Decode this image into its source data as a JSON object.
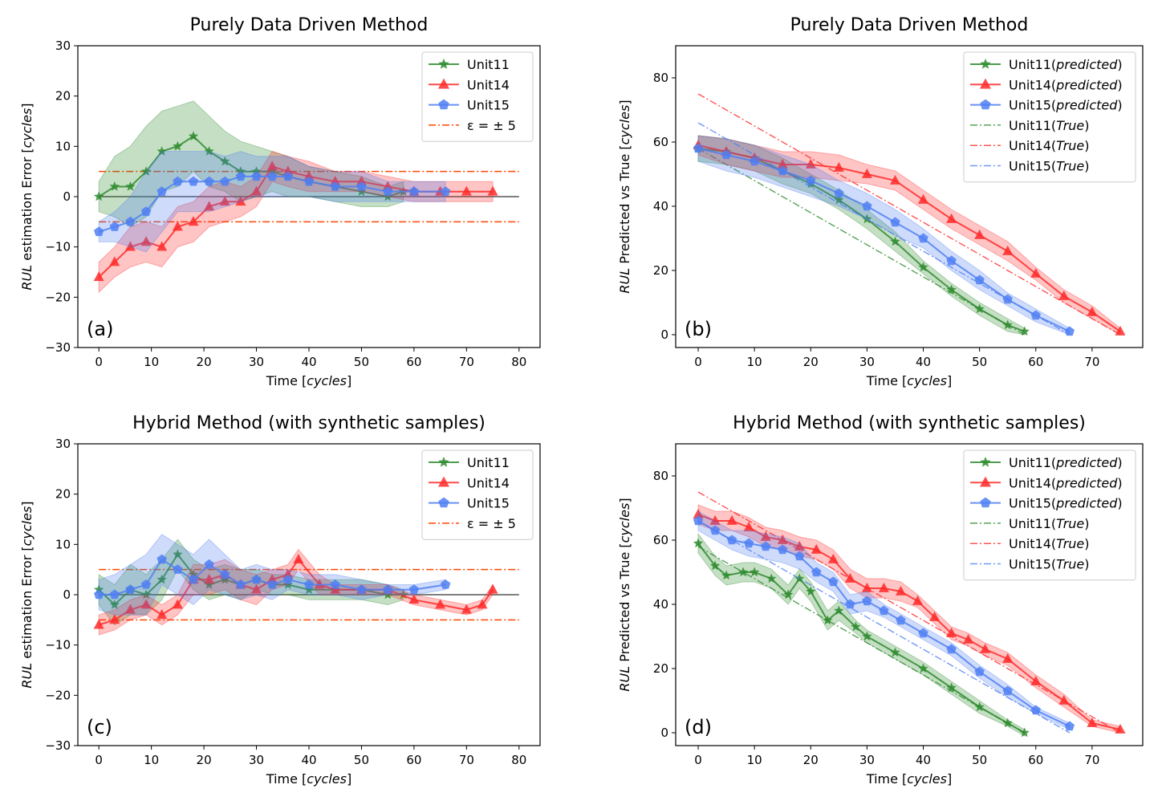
{
  "colors": {
    "Unit11": "#2e8b2e",
    "Unit14": "#ff2a2a",
    "Unit15": "#4f7ff2",
    "epsilon": "#ff4500",
    "zero": "#555555"
  },
  "chart_data": [
    {
      "panel": "(a)",
      "type": "line",
      "title": "Purely Data Driven Method",
      "ylabel_italic": "RUL",
      "ylabel_rest": " estimation Error [",
      "ylabel_unit": "cycles",
      "ylabel_close": "]",
      "xlabel": "Time [",
      "xlabel_unit": "cycles",
      "xlabel_close": "]",
      "xlim": [
        -4,
        84
      ],
      "ylim": [
        -30,
        30
      ],
      "xticks": [
        0,
        10,
        20,
        30,
        40,
        50,
        60,
        70,
        80
      ],
      "yticks": [
        -30,
        -20,
        -10,
        0,
        10,
        20,
        30
      ],
      "epsilon_band": 5,
      "legend_loc": "upper right",
      "legend": [
        {
          "label": "Unit11",
          "unit": "",
          "marker": "star",
          "series": "Unit11"
        },
        {
          "label": "Unit14",
          "unit": "",
          "marker": "triangle",
          "series": "Unit14"
        },
        {
          "label": "Unit15",
          "unit": "",
          "marker": "pentagon",
          "series": "Unit15"
        },
        {
          "label": "ε =  ± 5",
          "unit": "",
          "marker": "dashdot",
          "series": "epsilon"
        }
      ],
      "series": [
        {
          "name": "Unit11",
          "x": [
            0,
            3,
            6,
            9,
            12,
            15,
            18,
            21,
            24,
            27,
            30,
            33,
            36,
            40,
            45,
            50,
            55,
            58
          ],
          "y": [
            0,
            2,
            2,
            5,
            9,
            10,
            12,
            9,
            7,
            5,
            5,
            5,
            4,
            3,
            2,
            1,
            0,
            1
          ],
          "band": [
            3,
            6,
            8,
            9,
            8,
            8,
            7,
            7,
            6,
            6,
            5,
            4,
            4,
            3,
            3,
            3,
            2,
            2
          ]
        },
        {
          "name": "Unit14",
          "x": [
            0,
            3,
            6,
            9,
            12,
            15,
            18,
            21,
            24,
            27,
            30,
            33,
            36,
            40,
            45,
            50,
            55,
            60,
            65,
            70,
            75
          ],
          "y": [
            -16,
            -13,
            -10,
            -9,
            -10,
            -6,
            -5,
            -2,
            -1,
            -1,
            1,
            6,
            5,
            4,
            3,
            3,
            2,
            1,
            1,
            1,
            1
          ],
          "band": [
            3,
            3,
            4,
            4,
            4,
            4,
            4,
            4,
            4,
            3,
            3,
            3,
            3,
            3,
            2,
            2,
            2,
            2,
            2,
            2,
            2
          ]
        },
        {
          "name": "Unit15",
          "x": [
            0,
            3,
            6,
            9,
            12,
            15,
            18,
            21,
            24,
            27,
            30,
            33,
            36,
            40,
            45,
            50,
            55,
            60,
            66
          ],
          "y": [
            -7,
            -6,
            -5,
            -3,
            1,
            3,
            3,
            3,
            3,
            4,
            4,
            4,
            4,
            3,
            2,
            2,
            1,
            1,
            1
          ],
          "band": [
            2,
            3,
            5,
            8,
            8,
            6,
            6,
            6,
            5,
            5,
            4,
            4,
            4,
            3,
            3,
            3,
            2,
            2,
            2
          ]
        }
      ]
    },
    {
      "panel": "(b)",
      "type": "line",
      "title": "Purely Data Driven Method",
      "ylabel_italic": "RUL",
      "ylabel_rest": " Predicted vs True [",
      "ylabel_unit": "cycles",
      "ylabel_close": "]",
      "xlabel": "Time [",
      "xlabel_unit": "cycles",
      "xlabel_close": "]",
      "xlim": [
        -4,
        79
      ],
      "ylim": [
        -4,
        90
      ],
      "xticks": [
        0,
        10,
        20,
        30,
        40,
        50,
        60,
        70
      ],
      "yticks": [
        0,
        20,
        40,
        60,
        80
      ],
      "legend_loc": "upper right",
      "legend": [
        {
          "label": "Unit11(",
          "unit": "predicted",
          "marker": "star",
          "series": "Unit11"
        },
        {
          "label": "Unit14(",
          "unit": "predicted",
          "marker": "triangle",
          "series": "Unit14"
        },
        {
          "label": "Unit15(",
          "unit": "predicted",
          "marker": "pentagon",
          "series": "Unit15"
        },
        {
          "label": "Unit11(",
          "unit": "True",
          "marker": "dashdot",
          "series": "Unit11"
        },
        {
          "label": "Unit14(",
          "unit": "True",
          "marker": "dashdot",
          "series": "Unit14"
        },
        {
          "label": "Unit15(",
          "unit": "True",
          "marker": "dashdot",
          "series": "Unit15"
        }
      ],
      "series": [
        {
          "name": "Unit11",
          "x": [
            0,
            5,
            10,
            15,
            20,
            25,
            30,
            35,
            40,
            45,
            50,
            55,
            58
          ],
          "y": [
            58,
            57,
            55,
            51,
            47,
            42,
            36,
            29,
            21,
            14,
            8,
            3,
            1
          ],
          "band": [
            4,
            4,
            4,
            4,
            3,
            3,
            3,
            3,
            2,
            2,
            2,
            2,
            1
          ],
          "true": [
            58,
            0
          ]
        },
        {
          "name": "Unit14",
          "x": [
            0,
            5,
            10,
            15,
            20,
            25,
            30,
            35,
            40,
            45,
            50,
            55,
            60,
            65,
            70,
            75
          ],
          "y": [
            59,
            57,
            55,
            53,
            53,
            52,
            50,
            48,
            42,
            36,
            31,
            26,
            19,
            12,
            7,
            1
          ],
          "band": [
            3,
            4,
            4,
            4,
            4,
            4,
            3,
            3,
            3,
            3,
            3,
            3,
            2,
            2,
            2,
            1
          ],
          "true": [
            75,
            0
          ]
        },
        {
          "name": "Unit15",
          "x": [
            0,
            5,
            10,
            15,
            20,
            25,
            30,
            35,
            40,
            45,
            50,
            55,
            60,
            66
          ],
          "y": [
            58,
            56,
            54,
            51,
            48,
            44,
            40,
            35,
            30,
            23,
            17,
            11,
            6,
            1
          ],
          "band": [
            4,
            5,
            5,
            5,
            5,
            4,
            4,
            4,
            3,
            3,
            3,
            2,
            2,
            1
          ],
          "true": [
            66,
            0
          ]
        }
      ]
    },
    {
      "panel": "(c)",
      "type": "line",
      "title": "Hybrid Method (with synthetic samples)",
      "ylabel_italic": "RUL",
      "ylabel_rest": " estimation Error [",
      "ylabel_unit": "cycles",
      "ylabel_close": "]",
      "xlabel": "Time [",
      "xlabel_unit": "cycles",
      "xlabel_close": "]",
      "xlim": [
        -4,
        84
      ],
      "ylim": [
        -30,
        30
      ],
      "xticks": [
        0,
        10,
        20,
        30,
        40,
        50,
        60,
        70,
        80
      ],
      "yticks": [
        -30,
        -20,
        -10,
        0,
        10,
        20,
        30
      ],
      "epsilon_band": 5,
      "legend_loc": "upper right",
      "legend": [
        {
          "label": "Unit11",
          "unit": "",
          "marker": "star",
          "series": "Unit11"
        },
        {
          "label": "Unit14",
          "unit": "",
          "marker": "triangle",
          "series": "Unit14"
        },
        {
          "label": "Unit15",
          "unit": "",
          "marker": "pentagon",
          "series": "Unit15"
        },
        {
          "label": "ε =  ± 5",
          "unit": "",
          "marker": "dashdot",
          "series": "epsilon"
        }
      ],
      "series": [
        {
          "name": "Unit11",
          "x": [
            0,
            3,
            6,
            9,
            12,
            15,
            18,
            21,
            24,
            27,
            30,
            33,
            36,
            40,
            45,
            50,
            55,
            58
          ],
          "y": [
            1,
            -2,
            1,
            0,
            3,
            8,
            4,
            2,
            3,
            2,
            3,
            2,
            2,
            1,
            1,
            1,
            0,
            0
          ],
          "band": [
            3,
            4,
            5,
            4,
            4,
            3,
            3,
            3,
            3,
            3,
            2,
            2,
            2,
            2,
            2,
            2,
            2,
            1
          ]
        },
        {
          "name": "Unit14",
          "x": [
            0,
            3,
            6,
            9,
            12,
            15,
            18,
            21,
            24,
            27,
            30,
            33,
            36,
            38,
            42,
            45,
            50,
            55,
            60,
            65,
            70,
            73,
            75
          ],
          "y": [
            -6,
            -5,
            -3,
            -2,
            -4,
            -2,
            3,
            3,
            4,
            2,
            1,
            3,
            4,
            7,
            2,
            1,
            1,
            1,
            -1,
            -2,
            -3,
            -2,
            1
          ],
          "band": [
            2,
            2,
            2,
            2,
            2,
            2,
            3,
            3,
            3,
            3,
            3,
            2,
            2,
            2,
            2,
            1,
            1,
            1,
            1,
            1,
            1,
            1,
            1
          ]
        },
        {
          "name": "Unit15",
          "x": [
            0,
            3,
            6,
            9,
            12,
            15,
            18,
            21,
            24,
            27,
            30,
            33,
            36,
            40,
            45,
            50,
            55,
            60,
            66
          ],
          "y": [
            0,
            0,
            1,
            2,
            7,
            5,
            3,
            6,
            4,
            2,
            3,
            2,
            3,
            2,
            2,
            1,
            1,
            1,
            2
          ],
          "band": [
            3,
            4,
            5,
            6,
            5,
            5,
            5,
            5,
            4,
            3,
            3,
            3,
            2,
            2,
            2,
            2,
            1,
            1,
            1
          ]
        }
      ]
    },
    {
      "panel": "(d)",
      "type": "line",
      "title": "Hybrid Method (with synthetic samples)",
      "ylabel_italic": "RUL",
      "ylabel_rest": " Predicted vs True [",
      "ylabel_unit": "cycles",
      "ylabel_close": "]",
      "xlabel": "Time [",
      "xlabel_unit": "cycles",
      "xlabel_close": "]",
      "xlim": [
        -4,
        79
      ],
      "ylim": [
        -4,
        90
      ],
      "xticks": [
        0,
        10,
        20,
        30,
        40,
        50,
        60,
        70
      ],
      "yticks": [
        0,
        20,
        40,
        60,
        80
      ],
      "legend_loc": "upper right",
      "legend": [
        {
          "label": "Unit11(",
          "unit": "predicted",
          "marker": "star",
          "series": "Unit11"
        },
        {
          "label": "Unit14(",
          "unit": "predicted",
          "marker": "triangle",
          "series": "Unit14"
        },
        {
          "label": "Unit15(",
          "unit": "predicted",
          "marker": "pentagon",
          "series": "Unit15"
        },
        {
          "label": "Unit11(",
          "unit": "True",
          "marker": "dashdot",
          "series": "Unit11"
        },
        {
          "label": "Unit14(",
          "unit": "True",
          "marker": "dashdot",
          "series": "Unit14"
        },
        {
          "label": "Unit15(",
          "unit": "True",
          "marker": "dashdot",
          "series": "Unit15"
        }
      ],
      "series": [
        {
          "name": "Unit11",
          "x": [
            0,
            3,
            5,
            8,
            10,
            13,
            16,
            18,
            20,
            23,
            25,
            28,
            30,
            35,
            40,
            45,
            50,
            55,
            58
          ],
          "y": [
            59,
            52,
            49,
            50,
            50,
            48,
            43,
            48,
            44,
            35,
            38,
            33,
            30,
            25,
            20,
            14,
            8,
            3,
            0
          ],
          "band": [
            3,
            3,
            3,
            3,
            3,
            3,
            3,
            3,
            3,
            3,
            3,
            2,
            2,
            2,
            2,
            2,
            2,
            1,
            1
          ],
          "true": [
            58,
            0
          ]
        },
        {
          "name": "Unit14",
          "x": [
            0,
            3,
            6,
            9,
            12,
            15,
            18,
            21,
            24,
            27,
            30,
            33,
            36,
            39,
            42,
            45,
            48,
            51,
            55,
            60,
            65,
            70,
            75
          ],
          "y": [
            68,
            66,
            66,
            64,
            61,
            60,
            58,
            57,
            54,
            48,
            45,
            45,
            44,
            41,
            36,
            31,
            29,
            26,
            23,
            16,
            10,
            3,
            1
          ],
          "band": [
            3,
            3,
            3,
            3,
            3,
            3,
            3,
            3,
            3,
            3,
            3,
            3,
            3,
            2,
            2,
            2,
            2,
            2,
            2,
            2,
            2,
            1,
            1
          ],
          "true": [
            75,
            0
          ]
        },
        {
          "name": "Unit15",
          "x": [
            0,
            3,
            6,
            9,
            12,
            15,
            18,
            21,
            24,
            27,
            30,
            33,
            36,
            40,
            45,
            50,
            55,
            60,
            66
          ],
          "y": [
            66,
            63,
            60,
            59,
            58,
            57,
            55,
            50,
            47,
            40,
            41,
            38,
            35,
            31,
            26,
            19,
            13,
            7,
            2
          ],
          "band": [
            3,
            3,
            3,
            4,
            4,
            4,
            4,
            3,
            3,
            3,
            3,
            2,
            2,
            2,
            2,
            2,
            2,
            1,
            1
          ],
          "true": [
            66,
            0
          ]
        }
      ]
    }
  ]
}
